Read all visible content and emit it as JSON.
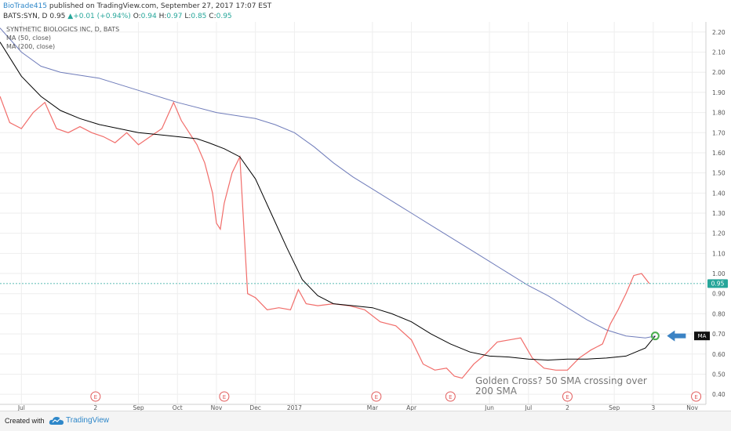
{
  "header": {
    "author": "BioTrade415",
    "published": "published on TradingView.com, September 27, 2017 17:07 EST",
    "symbol": "BATS:SYN, D",
    "last": "0.95",
    "change": "+0.01 (+0.94%)",
    "o_label": "O:",
    "o_value": "0.94",
    "h_label": "H:",
    "h_value": "0.97",
    "l_label": "L:",
    "l_value": "0.85",
    "c_label": "C:",
    "c_value": "0.95"
  },
  "footer": {
    "created_with": "Created with",
    "brand": "TradingView"
  },
  "colors": {
    "up": "#26a69a",
    "down": "#ef5350",
    "ma50": "#000000",
    "ma200": "#6f7cba",
    "price_line": "#26a69a",
    "earnings": "#e25c5c",
    "arrow": "#3b83c4",
    "cross_marker": "#4caf50"
  },
  "chart_data": {
    "type": "line",
    "title": "SYNTHETIC BIOLOGICS INC, D, BATS",
    "legend": [
      "MA (50, close)",
      "MA (200, close)"
    ],
    "legend_placement": "top-left",
    "grid": true,
    "ylim": [
      0.35,
      2.25
    ],
    "yticks": [
      "0.40",
      "0.50",
      "0.60",
      "0.70",
      "0.80",
      "0.90",
      "1.00",
      "1.10",
      "1.20",
      "1.30",
      "1.40",
      "1.50",
      "1.60",
      "1.70",
      "1.80",
      "1.90",
      "2.00",
      "2.10",
      "2.20"
    ],
    "x_ticks": [
      {
        "label": "Jul",
        "m": 0
      },
      {
        "label": "2",
        "m": 1.9
      },
      {
        "label": "Sep",
        "m": 3.0
      },
      {
        "label": "Oct",
        "m": 4.0
      },
      {
        "label": "Nov",
        "m": 5.0
      },
      {
        "label": "Dec",
        "m": 6.0
      },
      {
        "label": "2017",
        "m": 7.0
      },
      {
        "label": "Mar",
        "m": 9.0
      },
      {
        "label": "Apr",
        "m": 10.0
      },
      {
        "label": "Jun",
        "m": 12.0
      },
      {
        "label": "Jul",
        "m": 13.0
      },
      {
        "label": "2",
        "m": 14.0
      },
      {
        "label": "Sep",
        "m": 15.2
      },
      {
        "label": "3",
        "m": 16.2
      },
      {
        "label": "Nov",
        "m": 17.2
      }
    ],
    "x_month_range": [
      -0.55,
      17.55
    ],
    "earnings_marker_label": "E",
    "earnings_m": [
      1.9,
      5.2,
      9.1,
      11.0,
      14.0,
      17.3
    ],
    "price_label": "0.95",
    "current_price": 0.95,
    "ma_badge_label": "MA",
    "annotation": {
      "line1": "Golden Cross? 50 SMA crossing over",
      "line2": "200 SMA"
    },
    "golden_cross": {
      "m": 16.25,
      "y": 0.69
    },
    "series": [
      {
        "name": "MA (50, close)",
        "points": [
          [
            -0.55,
            2.15
          ],
          [
            0,
            1.98
          ],
          [
            0.5,
            1.88
          ],
          [
            1,
            1.81
          ],
          [
            1.5,
            1.77
          ],
          [
            2,
            1.74
          ],
          [
            2.5,
            1.72
          ],
          [
            3,
            1.7
          ],
          [
            3.5,
            1.69
          ],
          [
            4,
            1.68
          ],
          [
            4.5,
            1.67
          ],
          [
            4.8,
            1.65
          ],
          [
            5.2,
            1.62
          ],
          [
            5.6,
            1.58
          ],
          [
            6,
            1.47
          ],
          [
            6.4,
            1.3
          ],
          [
            6.8,
            1.13
          ],
          [
            7.2,
            0.97
          ],
          [
            7.6,
            0.89
          ],
          [
            8,
            0.85
          ],
          [
            8.5,
            0.84
          ],
          [
            9,
            0.83
          ],
          [
            9.5,
            0.8
          ],
          [
            10,
            0.76
          ],
          [
            10.5,
            0.7
          ],
          [
            11,
            0.65
          ],
          [
            11.5,
            0.61
          ],
          [
            12,
            0.59
          ],
          [
            12.5,
            0.585
          ],
          [
            13,
            0.575
          ],
          [
            13.5,
            0.57
          ],
          [
            14,
            0.575
          ],
          [
            14.5,
            0.575
          ],
          [
            15,
            0.58
          ],
          [
            15.5,
            0.59
          ],
          [
            16,
            0.63
          ],
          [
            16.25,
            0.69
          ]
        ]
      },
      {
        "name": "MA (200, close)",
        "points": [
          [
            -0.55,
            2.22
          ],
          [
            0,
            2.1
          ],
          [
            0.5,
            2.03
          ],
          [
            1,
            2.0
          ],
          [
            2,
            1.97
          ],
          [
            3,
            1.91
          ],
          [
            4,
            1.85
          ],
          [
            5,
            1.8
          ],
          [
            6,
            1.77
          ],
          [
            6.5,
            1.74
          ],
          [
            7,
            1.7
          ],
          [
            7.5,
            1.63
          ],
          [
            8,
            1.55
          ],
          [
            8.5,
            1.48
          ],
          [
            9,
            1.42
          ],
          [
            9.5,
            1.36
          ],
          [
            10,
            1.3
          ],
          [
            10.5,
            1.24
          ],
          [
            11,
            1.18
          ],
          [
            11.5,
            1.12
          ],
          [
            12,
            1.06
          ],
          [
            12.5,
            1.0
          ],
          [
            13,
            0.94
          ],
          [
            13.5,
            0.89
          ],
          [
            14,
            0.83
          ],
          [
            14.5,
            0.77
          ],
          [
            15,
            0.72
          ],
          [
            15.5,
            0.69
          ],
          [
            16,
            0.68
          ],
          [
            16.25,
            0.69
          ]
        ]
      },
      {
        "name": "Price",
        "points": [
          [
            -0.55,
            1.88
          ],
          [
            -0.3,
            1.75
          ],
          [
            0,
            1.72
          ],
          [
            0.3,
            1.8
          ],
          [
            0.6,
            1.85
          ],
          [
            0.9,
            1.72
          ],
          [
            1.2,
            1.7
          ],
          [
            1.5,
            1.73
          ],
          [
            1.8,
            1.7
          ],
          [
            2.1,
            1.68
          ],
          [
            2.4,
            1.65
          ],
          [
            2.7,
            1.7
          ],
          [
            3.0,
            1.64
          ],
          [
            3.3,
            1.68
          ],
          [
            3.6,
            1.72
          ],
          [
            3.9,
            1.85
          ],
          [
            4.1,
            1.76
          ],
          [
            4.3,
            1.7
          ],
          [
            4.5,
            1.64
          ],
          [
            4.7,
            1.55
          ],
          [
            4.9,
            1.4
          ],
          [
            5.0,
            1.25
          ],
          [
            5.1,
            1.22
          ],
          [
            5.2,
            1.35
          ],
          [
            5.4,
            1.5
          ],
          [
            5.6,
            1.58
          ],
          [
            5.8,
            0.9
          ],
          [
            6.0,
            0.88
          ],
          [
            6.3,
            0.82
          ],
          [
            6.6,
            0.83
          ],
          [
            6.9,
            0.82
          ],
          [
            7.1,
            0.92
          ],
          [
            7.3,
            0.85
          ],
          [
            7.6,
            0.84
          ],
          [
            8.0,
            0.85
          ],
          [
            8.4,
            0.84
          ],
          [
            8.8,
            0.82
          ],
          [
            9.2,
            0.76
          ],
          [
            9.6,
            0.74
          ],
          [
            10.0,
            0.67
          ],
          [
            10.3,
            0.55
          ],
          [
            10.6,
            0.52
          ],
          [
            10.9,
            0.53
          ],
          [
            11.1,
            0.49
          ],
          [
            11.3,
            0.48
          ],
          [
            11.6,
            0.55
          ],
          [
            11.9,
            0.6
          ],
          [
            12.2,
            0.66
          ],
          [
            12.5,
            0.67
          ],
          [
            12.8,
            0.68
          ],
          [
            13.1,
            0.58
          ],
          [
            13.4,
            0.53
          ],
          [
            13.7,
            0.52
          ],
          [
            14.0,
            0.52
          ],
          [
            14.3,
            0.58
          ],
          [
            14.6,
            0.62
          ],
          [
            14.9,
            0.65
          ],
          [
            15.1,
            0.75
          ],
          [
            15.3,
            0.82
          ],
          [
            15.5,
            0.9
          ],
          [
            15.7,
            0.99
          ],
          [
            15.9,
            1.0
          ],
          [
            16.1,
            0.95
          ]
        ]
      }
    ]
  }
}
